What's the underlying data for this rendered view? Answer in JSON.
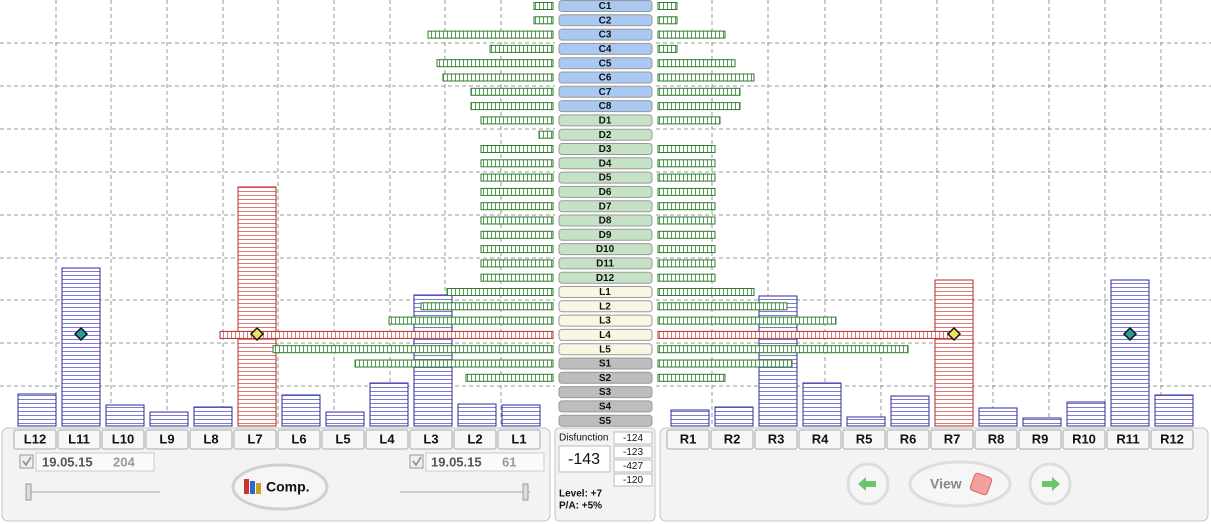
{
  "left_bars": {
    "labels": [
      "L12",
      "L11",
      "L10",
      "L9",
      "L8",
      "L7",
      "L6",
      "L5",
      "L4",
      "L3",
      "L2",
      "L1"
    ],
    "values": [
      32,
      158,
      21,
      14,
      19,
      239,
      31,
      14,
      43,
      131,
      22,
      21
    ],
    "color": "#2c2c9a",
    "highlight_color": "#b52a2a",
    "highlight": [
      5
    ],
    "markers": [
      1,
      5
    ]
  },
  "right_bars": {
    "labels": [
      "R1",
      "R2",
      "R3",
      "R4",
      "R5",
      "R6",
      "R7",
      "R8",
      "R9",
      "R10",
      "R11",
      "R12"
    ],
    "values": [
      16,
      19,
      130,
      43,
      9,
      30,
      146,
      18,
      8,
      24,
      146,
      31
    ],
    "color": "#2c2c9a",
    "highlight_color": "#b52a2a",
    "highlight": [
      6
    ],
    "markers": [
      6,
      10
    ]
  },
  "segments": [
    {
      "fill": "#a9c9f2",
      "bar_color": "#2f7a2f",
      "highlight_color": "#b52a2a",
      "highlight": [],
      "labels": [
        "C1",
        "C2",
        "C3",
        "C4",
        "C5",
        "C6",
        "C7",
        "C8"
      ],
      "left": [
        19,
        19,
        125,
        63,
        116,
        110,
        82,
        82
      ],
      "right": [
        19,
        19,
        67,
        19,
        77,
        96,
        82,
        82
      ]
    },
    {
      "fill": "#c6e2c6",
      "bar_color": "#2f7a2f",
      "highlight_color": "#b52a2a",
      "highlight": [],
      "labels": [
        "D1",
        "D2",
        "D3",
        "D4",
        "D5",
        "D6",
        "D7",
        "D8",
        "D9",
        "D10",
        "D11",
        "D12"
      ],
      "left": [
        72,
        14,
        72,
        72,
        72,
        72,
        72,
        72,
        72,
        72,
        72,
        72
      ],
      "right": [
        62,
        0,
        57,
        57,
        57,
        57,
        57,
        57,
        57,
        57,
        57,
        57
      ]
    },
    {
      "fill": "#fbf6e4",
      "bar_color": "#2f7a2f",
      "highlight_color": "#b52a2a",
      "highlight": [
        3
      ],
      "labels": [
        "L1",
        "L2",
        "L3",
        "L4",
        "L5"
      ],
      "left": [
        106,
        132,
        164,
        333,
        280
      ],
      "right": [
        96,
        129,
        178,
        297,
        250
      ]
    },
    {
      "fill": "#bdbdbd",
      "bar_color": "#2f7a2f",
      "highlight_color": "#b52a2a",
      "highlight": [],
      "labels": [
        "S1",
        "S2",
        "S3",
        "S4",
        "S5"
      ],
      "left": [
        198,
        87,
        0,
        0,
        0
      ],
      "right": [
        134,
        67,
        0,
        0,
        0
      ]
    }
  ],
  "left_panel": {
    "date_a": "19.05.15",
    "count_a": 204,
    "button": "Comp.",
    "date_b": "19.05.15",
    "count_b": 61
  },
  "center_panel": {
    "title": "Disfunction",
    "value": -143,
    "list": [
      -124,
      -123,
      -427,
      -120
    ],
    "level": "Level: +7",
    "pa": "P/A: +5%"
  },
  "right_panel": {
    "button": "View"
  }
}
